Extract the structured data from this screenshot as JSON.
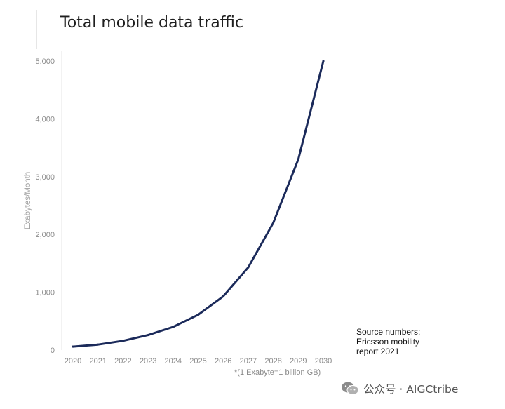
{
  "chart_data": {
    "type": "line",
    "title": "Total mobile data traffic",
    "xlabel": "",
    "ylabel": "Exabytes/Month",
    "categories": [
      "2020",
      "2021",
      "2022",
      "2023",
      "2024",
      "2025",
      "2026",
      "2027",
      "2028",
      "2029",
      "2030"
    ],
    "series": [
      {
        "name": "Total mobile data traffic",
        "values": [
          60,
          95,
          160,
          260,
          400,
          610,
          930,
          1430,
          2200,
          3300,
          5000
        ]
      }
    ],
    "ylim": [
      0,
      5000
    ],
    "yticks": [
      0,
      1000,
      2000,
      3000,
      4000,
      5000
    ],
    "ytick_labels": [
      "0",
      "1,000",
      "2,000",
      "3,000",
      "4,000",
      "5,000"
    ],
    "grid": false,
    "line_color": "#1b2a5a",
    "footnote": "*(1 Exabyte=1 billion GB)"
  },
  "source_note": "Source numbers: Ericsson mobility report 2021",
  "watermark": {
    "text": "公众号 · AIGCtribe",
    "icon": "wechat-icon"
  }
}
